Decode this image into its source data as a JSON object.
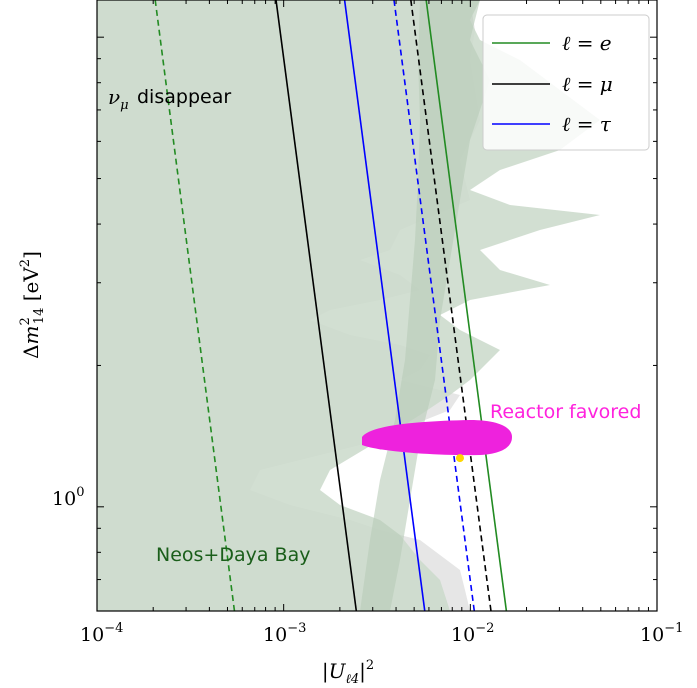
{
  "chart_data": {
    "type": "line",
    "xlabel": "|U_ℓ4|²",
    "ylabel": "Δm²₁₄ [eV²]",
    "xscale": "log",
    "yscale": "log",
    "xlim": [
      0.0001,
      0.1
    ],
    "ylim": [
      0.6,
      12
    ],
    "x_ticks": [
      {
        "value": 0.0001,
        "base": "10",
        "exp": "−4"
      },
      {
        "value": 0.001,
        "base": "10",
        "exp": "−3"
      },
      {
        "value": 0.01,
        "base": "10",
        "exp": "−2"
      },
      {
        "value": 0.1,
        "base": "10",
        "exp": "−1"
      }
    ],
    "y_ticks": [
      {
        "value": 1.0,
        "base": "10",
        "exp": "0"
      }
    ],
    "grid": false,
    "legend": {
      "position": "top-right",
      "entries": [
        {
          "label": "ℓ = e",
          "color": "#228B22"
        },
        {
          "label": "ℓ = μ",
          "color": "#000000"
        },
        {
          "label": "ℓ = τ",
          "color": "#0000ff"
        }
      ]
    },
    "series": [
      {
        "name": "ℓ = e",
        "style": "dashed",
        "color": "#228B22",
        "x": [
          0.000205,
          0.000545
        ],
        "y": [
          12,
          0.6
        ]
      },
      {
        "name": "ℓ = μ",
        "style": "solid",
        "color": "#000000",
        "x": [
          0.00091,
          0.00245
        ],
        "y": [
          12,
          0.6
        ]
      },
      {
        "name": "ℓ = τ",
        "style": "solid",
        "color": "#0000ff",
        "x": [
          0.00212,
          0.0057
        ],
        "y": [
          12,
          0.6
        ]
      },
      {
        "name": "ℓ = τ",
        "style": "dashed",
        "color": "#0000ff",
        "x": [
          0.0039,
          0.0105
        ],
        "y": [
          12,
          0.6
        ]
      },
      {
        "name": "ℓ = μ",
        "style": "dashed",
        "color": "#000000",
        "x": [
          0.0048,
          0.0129
        ],
        "y": [
          12,
          0.6
        ]
      },
      {
        "name": "ℓ = e",
        "style": "solid",
        "color": "#228B22",
        "x": [
          0.0058,
          0.0156
        ],
        "y": [
          12,
          0.6
        ]
      }
    ],
    "regions": [
      {
        "label": "Neos+Daya Bay",
        "color": "#1a5e1a"
      },
      {
        "label": "disappear",
        "color": "#000000"
      },
      {
        "label": "Reactor favored",
        "color": "#ff22dd"
      }
    ],
    "best_fit": {
      "x": 0.0088,
      "y": 1.27,
      "color": "#ffd700"
    }
  }
}
